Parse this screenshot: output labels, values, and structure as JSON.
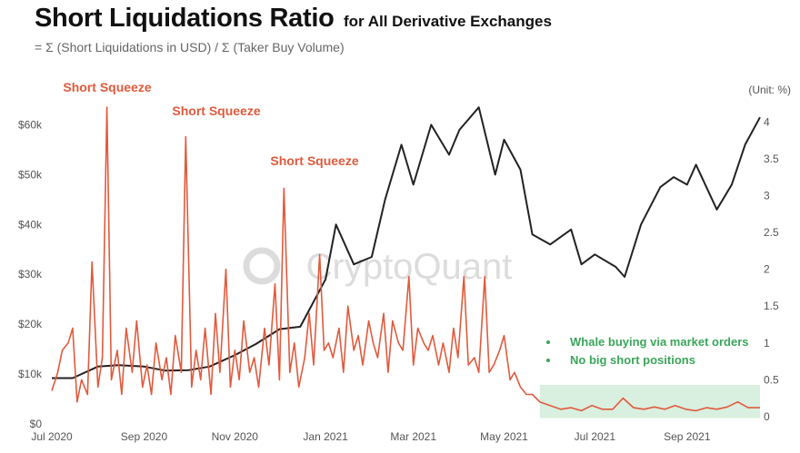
{
  "header": {
    "title": "Short Liquidations Ratio",
    "title_suffix": "for All Derivative Exchanges",
    "subtitle": "= Σ (Short Liquidations in USD) / Σ (Taker Buy Volume)"
  },
  "watermark": "CryptoQuant",
  "chart_data": {
    "type": "line",
    "title": "Short Liquidations Ratio",
    "unit_label": "(Unit: %)",
    "x_ticks": [
      "Jul 2020",
      "Sep 2020",
      "Nov 2020",
      "Jan 2021",
      "Mar 2021",
      "May 2021",
      "Jul 2021",
      "Sep 2021"
    ],
    "y_left_ticks": [
      "$0",
      "$10k",
      "$20k",
      "$30k",
      "$40k",
      "$50k",
      "$60k"
    ],
    "y_left_range": [
      0,
      65000
    ],
    "y_right_ticks": [
      "0",
      "0.5",
      "1",
      "1.5",
      "2",
      "2.5",
      "3",
      "3.5",
      "4"
    ],
    "y_right_range": [
      -0.1,
      4.3
    ],
    "x_range": [
      "2020-07-01",
      "2021-10-20"
    ],
    "series": [
      {
        "axis": "left",
        "color": "#222222",
        "x": [
          "2020-07-01",
          "2020-07-15",
          "2020-08-01",
          "2020-08-15",
          "2020-09-01",
          "2020-09-15",
          "2020-10-01",
          "2020-10-15",
          "2020-11-01",
          "2020-11-15",
          "2020-12-01",
          "2020-12-15",
          "2021-01-01",
          "2021-01-08",
          "2021-01-20",
          "2021-02-01",
          "2021-02-10",
          "2021-02-21",
          "2021-03-01",
          "2021-03-13",
          "2021-03-25",
          "2021-04-01",
          "2021-04-14",
          "2021-04-25",
          "2021-05-01",
          "2021-05-12",
          "2021-05-20",
          "2021-06-01",
          "2021-06-15",
          "2021-06-22",
          "2021-07-01",
          "2021-07-15",
          "2021-07-21",
          "2021-08-01",
          "2021-08-14",
          "2021-08-23",
          "2021-09-01",
          "2021-09-07",
          "2021-09-21",
          "2021-10-01",
          "2021-10-10",
          "2021-10-20"
        ],
        "values": [
          9200,
          9200,
          11500,
          11800,
          11500,
          10700,
          10800,
          11500,
          13800,
          16000,
          19000,
          19500,
          29000,
          40000,
          32000,
          33500,
          45000,
          56000,
          48000,
          60000,
          54000,
          59000,
          63500,
          50000,
          57000,
          51000,
          38000,
          36000,
          39000,
          32000,
          34000,
          31500,
          29500,
          40000,
          47500,
          49500,
          48000,
          52000,
          43000,
          48000,
          56000,
          61500
        ]
      },
      {
        "axis": "right",
        "color": "#e15a3c",
        "x": [
          "2020-07-01",
          "2020-07-05",
          "2020-07-08",
          "2020-07-12",
          "2020-07-15",
          "2020-07-18",
          "2020-07-21",
          "2020-07-25",
          "2020-07-28",
          "2020-08-01",
          "2020-08-04",
          "2020-08-07",
          "2020-08-10",
          "2020-08-14",
          "2020-08-17",
          "2020-08-20",
          "2020-08-24",
          "2020-08-27",
          "2020-08-31",
          "2020-09-03",
          "2020-09-06",
          "2020-09-09",
          "2020-09-13",
          "2020-09-16",
          "2020-09-19",
          "2020-09-22",
          "2020-09-26",
          "2020-09-29",
          "2020-10-03",
          "2020-10-06",
          "2020-10-09",
          "2020-10-12",
          "2020-10-16",
          "2020-10-19",
          "2020-10-22",
          "2020-10-26",
          "2020-10-29",
          "2020-11-01",
          "2020-11-04",
          "2020-11-07",
          "2020-11-11",
          "2020-11-14",
          "2020-11-17",
          "2020-11-21",
          "2020-11-24",
          "2020-11-28",
          "2020-12-01",
          "2020-12-04",
          "2020-12-08",
          "2020-12-11",
          "2020-12-14",
          "2020-12-18",
          "2020-12-21",
          "2020-12-24",
          "2020-12-28",
          "2020-12-31",
          "2021-01-03",
          "2021-01-06",
          "2021-01-10",
          "2021-01-13",
          "2021-01-16",
          "2021-01-20",
          "2021-01-23",
          "2021-01-26",
          "2021-01-30",
          "2021-02-02",
          "2021-02-05",
          "2021-02-09",
          "2021-02-12",
          "2021-02-15",
          "2021-02-19",
          "2021-02-22",
          "2021-02-26",
          "2021-03-01",
          "2021-03-04",
          "2021-03-08",
          "2021-03-11",
          "2021-03-14",
          "2021-03-18",
          "2021-03-21",
          "2021-03-25",
          "2021-03-28",
          "2021-03-31",
          "2021-04-04",
          "2021-04-07",
          "2021-04-11",
          "2021-04-14",
          "2021-04-18",
          "2021-04-21",
          "2021-04-24",
          "2021-04-28",
          "2021-05-01",
          "2021-05-05",
          "2021-05-08",
          "2021-05-12",
          "2021-05-16",
          "2021-05-20",
          "2021-05-25",
          "2021-06-01",
          "2021-06-08",
          "2021-06-15",
          "2021-06-22",
          "2021-06-29",
          "2021-07-06",
          "2021-07-13",
          "2021-07-20",
          "2021-07-27",
          "2021-08-03",
          "2021-08-10",
          "2021-08-17",
          "2021-08-24",
          "2021-08-31",
          "2021-09-07",
          "2021-09-14",
          "2021-09-21",
          "2021-09-28",
          "2021-10-05",
          "2021-10-12",
          "2021-10-20"
        ],
        "values": [
          0.35,
          0.6,
          0.9,
          1.0,
          1.2,
          0.2,
          0.5,
          0.3,
          2.1,
          0.4,
          0.8,
          4.2,
          0.5,
          0.9,
          0.3,
          1.2,
          0.6,
          1.3,
          0.4,
          0.7,
          0.3,
          1.0,
          0.5,
          0.8,
          0.3,
          1.1,
          0.6,
          3.8,
          0.4,
          0.9,
          0.5,
          1.2,
          0.3,
          1.4,
          0.6,
          2.0,
          0.4,
          0.9,
          0.5,
          1.3,
          0.6,
          0.8,
          0.4,
          1.2,
          0.7,
          1.8,
          0.5,
          3.1,
          0.6,
          1.0,
          0.4,
          0.8,
          1.4,
          0.7,
          2.2,
          0.9,
          1.0,
          0.8,
          1.2,
          0.6,
          1.5,
          0.9,
          1.1,
          0.7,
          1.3,
          1.0,
          0.8,
          1.4,
          0.6,
          1.3,
          1.0,
          0.9,
          1.9,
          0.7,
          1.2,
          1.0,
          0.9,
          1.1,
          0.7,
          1.0,
          0.6,
          1.2,
          0.8,
          1.9,
          0.7,
          0.8,
          0.6,
          1.9,
          0.6,
          0.7,
          0.9,
          1.1,
          0.5,
          0.6,
          0.4,
          0.3,
          0.3,
          0.2,
          0.15,
          0.1,
          0.12,
          0.08,
          0.15,
          0.1,
          0.1,
          0.25,
          0.12,
          0.1,
          0.13,
          0.1,
          0.15,
          0.1,
          0.08,
          0.12,
          0.1,
          0.13,
          0.2,
          0.12,
          0.12
        ]
      }
    ],
    "annotations": [
      "Short Squeeze",
      "Short Squeeze",
      "Short Squeeze"
    ],
    "notes": [
      "Whale buying via market orders",
      "No big short positions"
    ],
    "highlight_color": "#d9efdf",
    "grid": false,
    "legend": "none"
  }
}
